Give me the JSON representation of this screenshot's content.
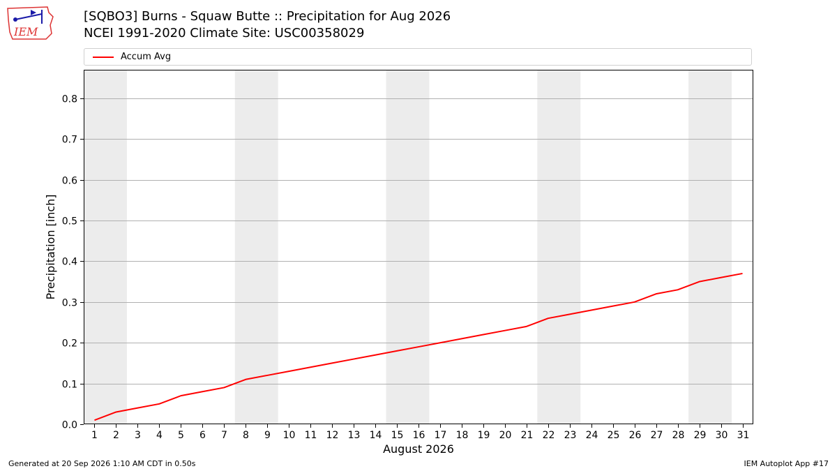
{
  "header": {
    "title_line1": "[SQBO3] Burns - Squaw Butte :: Precipitation for Aug 2026",
    "title_line2": "NCEI 1991-2020 Climate Site: USC00358029",
    "logo_text": "IEM"
  },
  "footer": {
    "generated": "Generated at 20 Sep 2026 1:10 AM CDT in 0.50s",
    "app": "IEM Autoplot App #17"
  },
  "colors": {
    "series": "#ff0000",
    "weekend_band": "#ececec",
    "grid": "#b0b0b0"
  },
  "chart_data": {
    "type": "line",
    "xlabel": "August 2026",
    "ylabel": "Precipitation [inch]",
    "x": [
      1,
      2,
      3,
      4,
      5,
      6,
      7,
      8,
      9,
      10,
      11,
      12,
      13,
      14,
      15,
      16,
      17,
      18,
      19,
      20,
      21,
      22,
      23,
      24,
      25,
      26,
      27,
      28,
      29,
      30,
      31
    ],
    "xtick_labels": [
      "1",
      "2",
      "3",
      "4",
      "5",
      "6",
      "7",
      "8",
      "9",
      "10",
      "11",
      "12",
      "13",
      "14",
      "15",
      "16",
      "17",
      "18",
      "19",
      "20",
      "21",
      "22",
      "23",
      "24",
      "25",
      "26",
      "27",
      "28",
      "29",
      "30",
      "31"
    ],
    "ylim": [
      0,
      0.87
    ],
    "yticks": [
      0.0,
      0.1,
      0.2,
      0.3,
      0.4,
      0.5,
      0.6,
      0.7,
      0.8
    ],
    "ytick_labels": [
      "0.0",
      "0.1",
      "0.2",
      "0.3",
      "0.4",
      "0.5",
      "0.6",
      "0.7",
      "0.8"
    ],
    "grid": "horizontal",
    "legend_position": "top",
    "weekend_bands": [
      [
        1,
        2
      ],
      [
        8,
        9
      ],
      [
        15,
        16
      ],
      [
        22,
        23
      ],
      [
        29,
        30
      ]
    ],
    "series": [
      {
        "name": "Accum Avg",
        "values": [
          0.01,
          0.03,
          0.04,
          0.05,
          0.07,
          0.08,
          0.09,
          0.11,
          0.12,
          0.13,
          0.14,
          0.15,
          0.16,
          0.17,
          0.18,
          0.19,
          0.2,
          0.21,
          0.22,
          0.23,
          0.24,
          0.26,
          0.27,
          0.28,
          0.29,
          0.3,
          0.32,
          0.33,
          0.35,
          0.36,
          0.37
        ]
      }
    ]
  }
}
